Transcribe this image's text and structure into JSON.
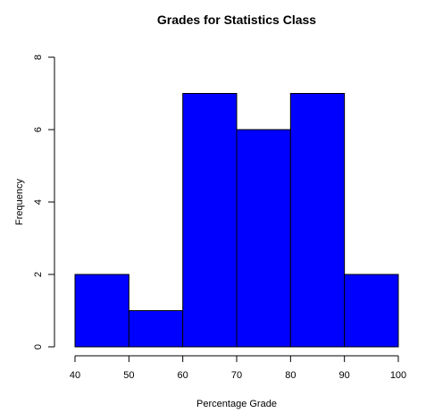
{
  "chart_data": {
    "type": "bar",
    "subtype": "histogram",
    "title": "Grades for Statistics Class",
    "xlabel": "Percentage Grade",
    "ylabel": "Frequency",
    "bins": [
      {
        "from": 40,
        "to": 50,
        "value": 2
      },
      {
        "from": 50,
        "to": 60,
        "value": 1
      },
      {
        "from": 60,
        "to": 70,
        "value": 7
      },
      {
        "from": 70,
        "to": 80,
        "value": 6
      },
      {
        "from": 80,
        "to": 90,
        "value": 7
      },
      {
        "from": 90,
        "to": 100,
        "value": 2
      }
    ],
    "xlim": [
      40,
      100
    ],
    "ylim": [
      0,
      8
    ],
    "xticks": [
      40,
      50,
      60,
      70,
      80,
      90,
      100
    ],
    "yticks": [
      0,
      2,
      4,
      6,
      8
    ],
    "bar_color": "#0000FF",
    "edge_color": "#000000",
    "grid": false
  }
}
